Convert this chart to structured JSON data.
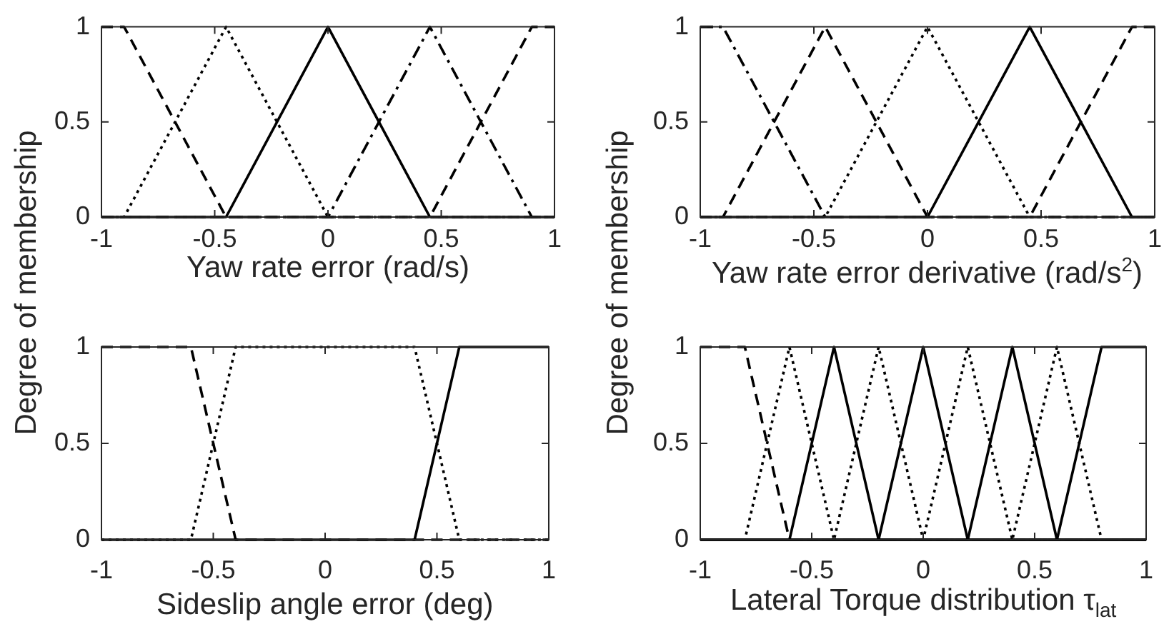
{
  "chart_data": [
    {
      "type": "line",
      "xlabel": "Yaw rate error (rad/s)",
      "ylabel": "Degree of membership",
      "xlim": [
        -1,
        1
      ],
      "xticks": [
        -1,
        -0.5,
        0,
        0.5,
        1
      ],
      "ylim": [
        0,
        1
      ],
      "yticks": [
        0,
        0.5,
        1
      ],
      "series": [
        {
          "color": "#000000",
          "line_style": "dashed",
          "x": [
            -1,
            -0.9,
            -0.45,
            1
          ],
          "values": [
            1,
            1,
            0,
            0
          ]
        },
        {
          "color": "#000000",
          "line_style": "dotted",
          "x": [
            -1,
            -0.9,
            -0.45,
            0,
            1
          ],
          "values": [
            0,
            0,
            1,
            0,
            0
          ]
        },
        {
          "color": "#000000",
          "line_style": "solid",
          "x": [
            -1,
            -0.45,
            0,
            0.45,
            1
          ],
          "values": [
            0,
            0,
            1,
            0,
            0
          ]
        },
        {
          "color": "#000000",
          "line_style": "dashdot",
          "x": [
            -1,
            0,
            0.45,
            0.9,
            1
          ],
          "values": [
            0,
            0,
            1,
            0,
            0
          ]
        },
        {
          "color": "#000000",
          "line_style": "dashed",
          "x": [
            -1,
            0.45,
            0.9,
            1
          ],
          "values": [
            0,
            0,
            1,
            1
          ]
        }
      ]
    },
    {
      "type": "line",
      "xlabel": "Yaw rate error derivative (rad/s$^{2}$)",
      "ylabel": "Degree of membership",
      "xlim": [
        -1,
        1
      ],
      "xticks": [
        -1,
        -0.5,
        0,
        0.5,
        1
      ],
      "ylim": [
        0,
        1
      ],
      "yticks": [
        0,
        0.5,
        1
      ],
      "series": [
        {
          "color": "#000000",
          "line_style": "dashdot",
          "x": [
            -1,
            -0.9,
            -0.45,
            1
          ],
          "values": [
            1,
            1,
            0,
            0
          ]
        },
        {
          "color": "#000000",
          "line_style": "dashed",
          "x": [
            -1,
            -0.9,
            -0.45,
            0,
            1
          ],
          "values": [
            0,
            0,
            1,
            0,
            0
          ]
        },
        {
          "color": "#000000",
          "line_style": "dotted",
          "x": [
            -1,
            -0.45,
            0,
            0.45,
            1
          ],
          "values": [
            0,
            0,
            1,
            0,
            0
          ]
        },
        {
          "color": "#000000",
          "line_style": "solid",
          "x": [
            -1,
            0,
            0.45,
            0.9,
            1
          ],
          "values": [
            0,
            0,
            1,
            0,
            0
          ]
        },
        {
          "color": "#000000",
          "line_style": "dashed",
          "x": [
            -1,
            0.45,
            0.9,
            1
          ],
          "values": [
            0,
            0,
            1,
            1
          ]
        }
      ]
    },
    {
      "type": "line",
      "xlabel": "Sideslip angle error (deg)",
      "xlim": [
        -1,
        1
      ],
      "xticks": [
        -1,
        -0.5,
        0,
        0.5,
        1
      ],
      "ylim": [
        0,
        1
      ],
      "yticks": [
        0,
        0.5,
        1
      ],
      "series": [
        {
          "color": "#000000",
          "line_style": "dashed",
          "x": [
            -1,
            -0.6,
            -0.4,
            1
          ],
          "values": [
            1,
            1,
            0,
            0
          ]
        },
        {
          "color": "#000000",
          "line_style": "dotted",
          "x": [
            -1,
            -0.6,
            -0.4,
            0.4,
            0.6,
            1
          ],
          "values": [
            0,
            0,
            1,
            1,
            0,
            0
          ]
        },
        {
          "color": "#000000",
          "line_style": "solid",
          "x": [
            -1,
            0.4,
            0.6,
            1
          ],
          "values": [
            0,
            0,
            1,
            1
          ]
        }
      ]
    },
    {
      "type": "line",
      "xlabel": "Lateral Torque distribution τ$_{lat}$",
      "xlim": [
        -1,
        1
      ],
      "xticks": [
        -1,
        -0.5,
        0,
        0.5,
        1
      ],
      "ylim": [
        0,
        1
      ],
      "yticks": [
        0,
        0.5,
        1
      ],
      "series": [
        {
          "color": "#000000",
          "line_style": "dashed",
          "x": [
            -1,
            -0.8,
            -0.6,
            1
          ],
          "values": [
            1,
            1,
            0,
            0
          ]
        },
        {
          "color": "#000000",
          "line_style": "dotted",
          "x": [
            -1,
            -0.8,
            -0.6,
            -0.4,
            1
          ],
          "values": [
            0,
            0,
            1,
            0,
            0
          ]
        },
        {
          "color": "#000000",
          "line_style": "solid",
          "x": [
            -1,
            -0.6,
            -0.4,
            -0.2,
            1
          ],
          "values": [
            0,
            0,
            1,
            0,
            0
          ]
        },
        {
          "color": "#000000",
          "line_style": "dotted",
          "x": [
            -1,
            -0.4,
            -0.2,
            0,
            1
          ],
          "values": [
            0,
            0,
            1,
            0,
            0
          ]
        },
        {
          "color": "#000000",
          "line_style": "solid",
          "x": [
            -1,
            -0.2,
            0,
            0.2,
            1
          ],
          "values": [
            0,
            0,
            1,
            0,
            0
          ]
        },
        {
          "color": "#000000",
          "line_style": "dotted",
          "x": [
            -1,
            0,
            0.2,
            0.4,
            1
          ],
          "values": [
            0,
            0,
            1,
            0,
            0
          ]
        },
        {
          "color": "#000000",
          "line_style": "solid",
          "x": [
            -1,
            0.2,
            0.4,
            0.6,
            1
          ],
          "values": [
            0,
            0,
            1,
            0,
            0
          ]
        },
        {
          "color": "#000000",
          "line_style": "dotted",
          "x": [
            -1,
            0.4,
            0.6,
            0.8,
            1
          ],
          "values": [
            0,
            0,
            1,
            0,
            0
          ]
        },
        {
          "color": "#000000",
          "line_style": "solid",
          "x": [
            -1,
            0.6,
            0.8,
            1
          ],
          "values": [
            0,
            0,
            1,
            1
          ]
        }
      ]
    }
  ]
}
